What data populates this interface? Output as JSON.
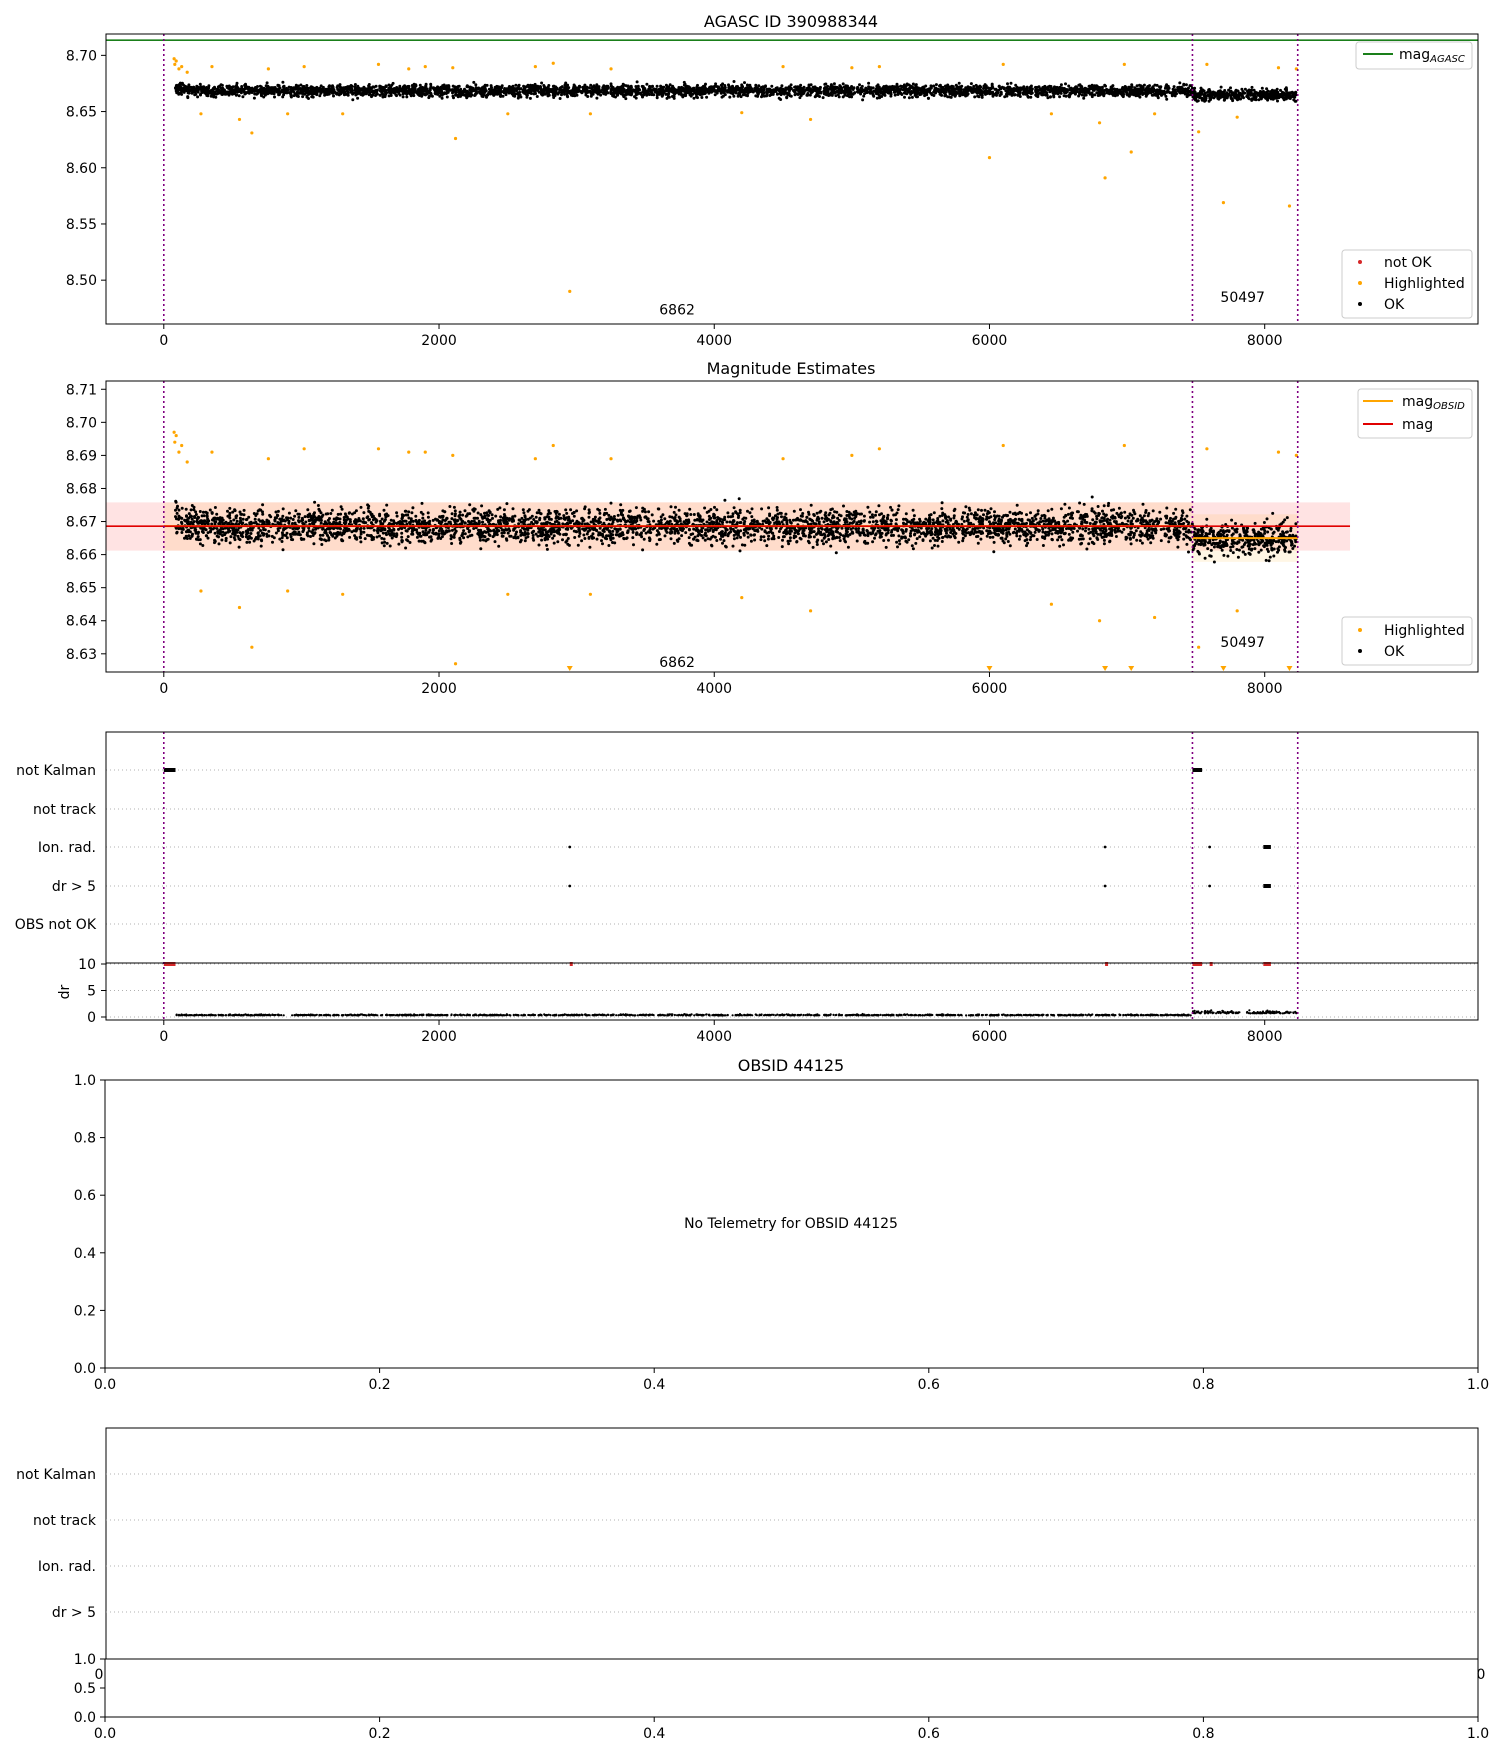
{
  "chart_data": [
    {
      "type": "scatter",
      "title": "AGASC ID 390988344",
      "xlabel": "",
      "ylabel": "",
      "xlim": [
        -420,
        9550
      ],
      "ylim": [
        8.461,
        8.719
      ],
      "xticks": [
        0,
        2000,
        4000,
        6000,
        8000
      ],
      "yticks": [
        8.5,
        8.55,
        8.6,
        8.65,
        8.7
      ],
      "ytick_labels": [
        "8.50",
        "8.55",
        "8.60",
        "8.65",
        "8.70"
      ],
      "legend_position": "top-right (line), bottom-right (points)",
      "reference_lines": [
        {
          "name": "magAGASC",
          "value": 8.7135,
          "color": "#1a7f1a"
        }
      ],
      "obs_boundaries": [
        0,
        7475,
        8240
      ],
      "obsid_labels": [
        {
          "text": "6862",
          "x": 3730,
          "y": 8.474
        },
        {
          "text": "50497",
          "x": 7840,
          "y": 8.485
        }
      ],
      "series": [
        {
          "name": "not OK",
          "color": "#d62728",
          "points": []
        },
        {
          "name": "Highlighted",
          "color": "#ffa500",
          "points": [
            [
              75,
              8.697
            ],
            [
              80,
              8.692
            ],
            [
              90,
              8.695
            ],
            [
              110,
              8.688
            ],
            [
              130,
              8.69
            ],
            [
              170,
              8.685
            ],
            [
              270,
              8.648
            ],
            [
              350,
              8.69
            ],
            [
              550,
              8.643
            ],
            [
              640,
              8.631
            ],
            [
              760,
              8.688
            ],
            [
              900,
              8.648
            ],
            [
              1020,
              8.69
            ],
            [
              1300,
              8.648
            ],
            [
              1560,
              8.692
            ],
            [
              1780,
              8.688
            ],
            [
              1900,
              8.69
            ],
            [
              2120,
              8.626
            ],
            [
              2100,
              8.689
            ],
            [
              2500,
              8.648
            ],
            [
              2700,
              8.69
            ],
            [
              2830,
              8.693
            ],
            [
              2950,
              8.49
            ],
            [
              3100,
              8.648
            ],
            [
              3250,
              8.688
            ],
            [
              4200,
              8.649
            ],
            [
              4500,
              8.69
            ],
            [
              4700,
              8.643
            ],
            [
              5000,
              8.689
            ],
            [
              5200,
              8.69
            ],
            [
              6000,
              8.609
            ],
            [
              6100,
              8.692
            ],
            [
              6450,
              8.648
            ],
            [
              6800,
              8.64
            ],
            [
              6840,
              8.591
            ],
            [
              6980,
              8.692
            ],
            [
              7030,
              8.614
            ],
            [
              7200,
              8.648
            ],
            [
              7520,
              8.632
            ],
            [
              7580,
              8.692
            ],
            [
              7700,
              8.569
            ],
            [
              7800,
              8.645
            ],
            [
              8100,
              8.689
            ],
            [
              8180,
              8.566
            ],
            [
              8230,
              8.688
            ]
          ]
        },
        {
          "name": "OK",
          "color": "#000000",
          "mode": "band",
          "x_start": 85,
          "x_end": 8230,
          "center": 8.6686,
          "spread": 0.0073
        }
      ]
    },
    {
      "type": "scatter",
      "title": "Magnitude Estimates",
      "xlabel": "",
      "ylabel": "",
      "xlim": [
        -420,
        9550
      ],
      "ylim": [
        8.6245,
        8.7125
      ],
      "xticks": [
        0,
        2000,
        4000,
        6000,
        8000
      ],
      "yticks": [
        8.63,
        8.64,
        8.65,
        8.66,
        8.67,
        8.68,
        8.69,
        8.7,
        8.71
      ],
      "ytick_labels": [
        "8.63",
        "8.64",
        "8.65",
        "8.66",
        "8.67",
        "8.68",
        "8.69",
        "8.70",
        "8.71"
      ],
      "legend_position": "top-right (lines), bottom-right (points)",
      "mag_line": {
        "name": "mag",
        "value": 8.6686,
        "band": [
          8.6612,
          8.6758
        ],
        "color": "#e00000"
      },
      "obsid_mag_segments": [
        {
          "name": "magOBSID",
          "x0": 0,
          "x1": 7475,
          "value": 8.6686,
          "band": [
            8.6612,
            8.6758
          ],
          "color": "#ffa500"
        },
        {
          "name": "magOBSID",
          "x0": 7475,
          "x1": 8240,
          "value": 8.665,
          "band": [
            8.6578,
            8.6722
          ],
          "color": "#ffa500"
        }
      ],
      "obs_boundaries": [
        0,
        7475,
        8240
      ],
      "obsid_labels": [
        {
          "text": "6862",
          "x": 3730,
          "y": 8.6275
        },
        {
          "text": "50497",
          "x": 7840,
          "y": 8.6335
        }
      ],
      "series": [
        {
          "name": "Highlighted",
          "color": "#ffa500",
          "points": [
            [
              75,
              8.697
            ],
            [
              80,
              8.694
            ],
            [
              90,
              8.696
            ],
            [
              110,
              8.691
            ],
            [
              130,
              8.693
            ],
            [
              170,
              8.688
            ],
            [
              270,
              8.649
            ],
            [
              350,
              8.691
            ],
            [
              550,
              8.644
            ],
            [
              640,
              8.632
            ],
            [
              760,
              8.689
            ],
            [
              900,
              8.649
            ],
            [
              1020,
              8.692
            ],
            [
              1300,
              8.648
            ],
            [
              1560,
              8.692
            ],
            [
              1780,
              8.691
            ],
            [
              1900,
              8.691
            ],
            [
              2120,
              8.627
            ],
            [
              2100,
              8.69
            ],
            [
              2500,
              8.648
            ],
            [
              2700,
              8.689
            ],
            [
              2830,
              8.693
            ],
            [
              2950,
              8.6255
            ],
            [
              3100,
              8.648
            ],
            [
              3250,
              8.689
            ],
            [
              4200,
              8.647
            ],
            [
              4500,
              8.689
            ],
            [
              4700,
              8.643
            ],
            [
              5000,
              8.69
            ],
            [
              5200,
              8.692
            ],
            [
              6000,
              8.6255
            ],
            [
              6100,
              8.693
            ],
            [
              6450,
              8.645
            ],
            [
              6800,
              8.64
            ],
            [
              6840,
              8.6255
            ],
            [
              6980,
              8.693
            ],
            [
              7030,
              8.6255
            ],
            [
              7200,
              8.641
            ],
            [
              7520,
              8.632
            ],
            [
              7580,
              8.692
            ],
            [
              7700,
              8.6255
            ],
            [
              7800,
              8.643
            ],
            [
              8100,
              8.691
            ],
            [
              8180,
              8.6255
            ],
            [
              8230,
              8.69
            ]
          ]
        },
        {
          "name": "OK",
          "color": "#000000",
          "mode": "band",
          "x_start": 85,
          "x_end": 8230,
          "center": 8.6686,
          "spread": 0.0073
        }
      ]
    },
    {
      "type": "scatter",
      "title": "",
      "xlim": [
        -420,
        9550
      ],
      "xticks": [
        0,
        2000,
        4000,
        6000,
        8000
      ],
      "flag_rows": [
        "not Kalman",
        "not track",
        "Ion. rad.",
        "dr > 5",
        "OBS not OK"
      ],
      "flag_points": [
        {
          "row": "not Kalman",
          "ranges": [
            [
              0,
              85
            ],
            [
              7475,
              7545
            ]
          ]
        },
        {
          "row": "Ion. rad.",
          "x": [
            2950,
            6840,
            7600
          ],
          "ranges": [
            [
              7990,
              8045
            ]
          ]
        },
        {
          "row": "dr > 5",
          "x": [
            2950,
            6840,
            7600
          ],
          "ranges": [
            [
              7990,
              8045
            ]
          ]
        }
      ],
      "obs_boundaries": [
        0,
        7475,
        8240
      ],
      "dr_panel": {
        "ylabel": "dr",
        "ylim": [
          -0.5,
          10.5
        ],
        "yticks": [
          0,
          5,
          10
        ],
        "clip_value": 10,
        "clip_x": [
          [
            0,
            85
          ],
          [
            2950,
            2950
          ],
          [
            6840,
            6840
          ],
          [
            7475,
            7545
          ],
          [
            7600,
            7600
          ],
          [
            7990,
            8045
          ]
        ],
        "baseline": 0.3
      }
    },
    {
      "type": "scatter",
      "title": "OBSID 44125",
      "xlim": [
        0,
        1
      ],
      "ylim": [
        0,
        1
      ],
      "xticks": [
        0.0,
        0.2,
        0.4,
        0.6,
        0.8,
        1.0
      ],
      "yticks": [
        0.0,
        0.2,
        0.4,
        0.6,
        0.8,
        1.0
      ],
      "tick_labels": [
        "0.0",
        "0.2",
        "0.4",
        "0.6",
        "0.8",
        "1.0"
      ],
      "annotation": "No Telemetry for OBSID 44125",
      "series": []
    },
    {
      "type": "scatter",
      "title": "",
      "flag_rows": [
        "not Kalman",
        "not track",
        "Ion. rad.",
        "dr > 5"
      ],
      "sub_panel": {
        "ylim": [
          0,
          1
        ],
        "yticks": [
          0.0,
          0.5,
          1.0
        ],
        "ytick_labels": [
          "0.0",
          "0.5",
          "1.0"
        ],
        "xticks": [
          0.0,
          0.2,
          0.4,
          0.6,
          0.8,
          1.0
        ],
        "xtick_labels": [
          "0.0",
          "0.2",
          "0.4",
          "0.6",
          "0.8",
          "1.0"
        ]
      },
      "overlap_tick_labels": [
        "0",
        "0"
      ],
      "series": []
    }
  ]
}
